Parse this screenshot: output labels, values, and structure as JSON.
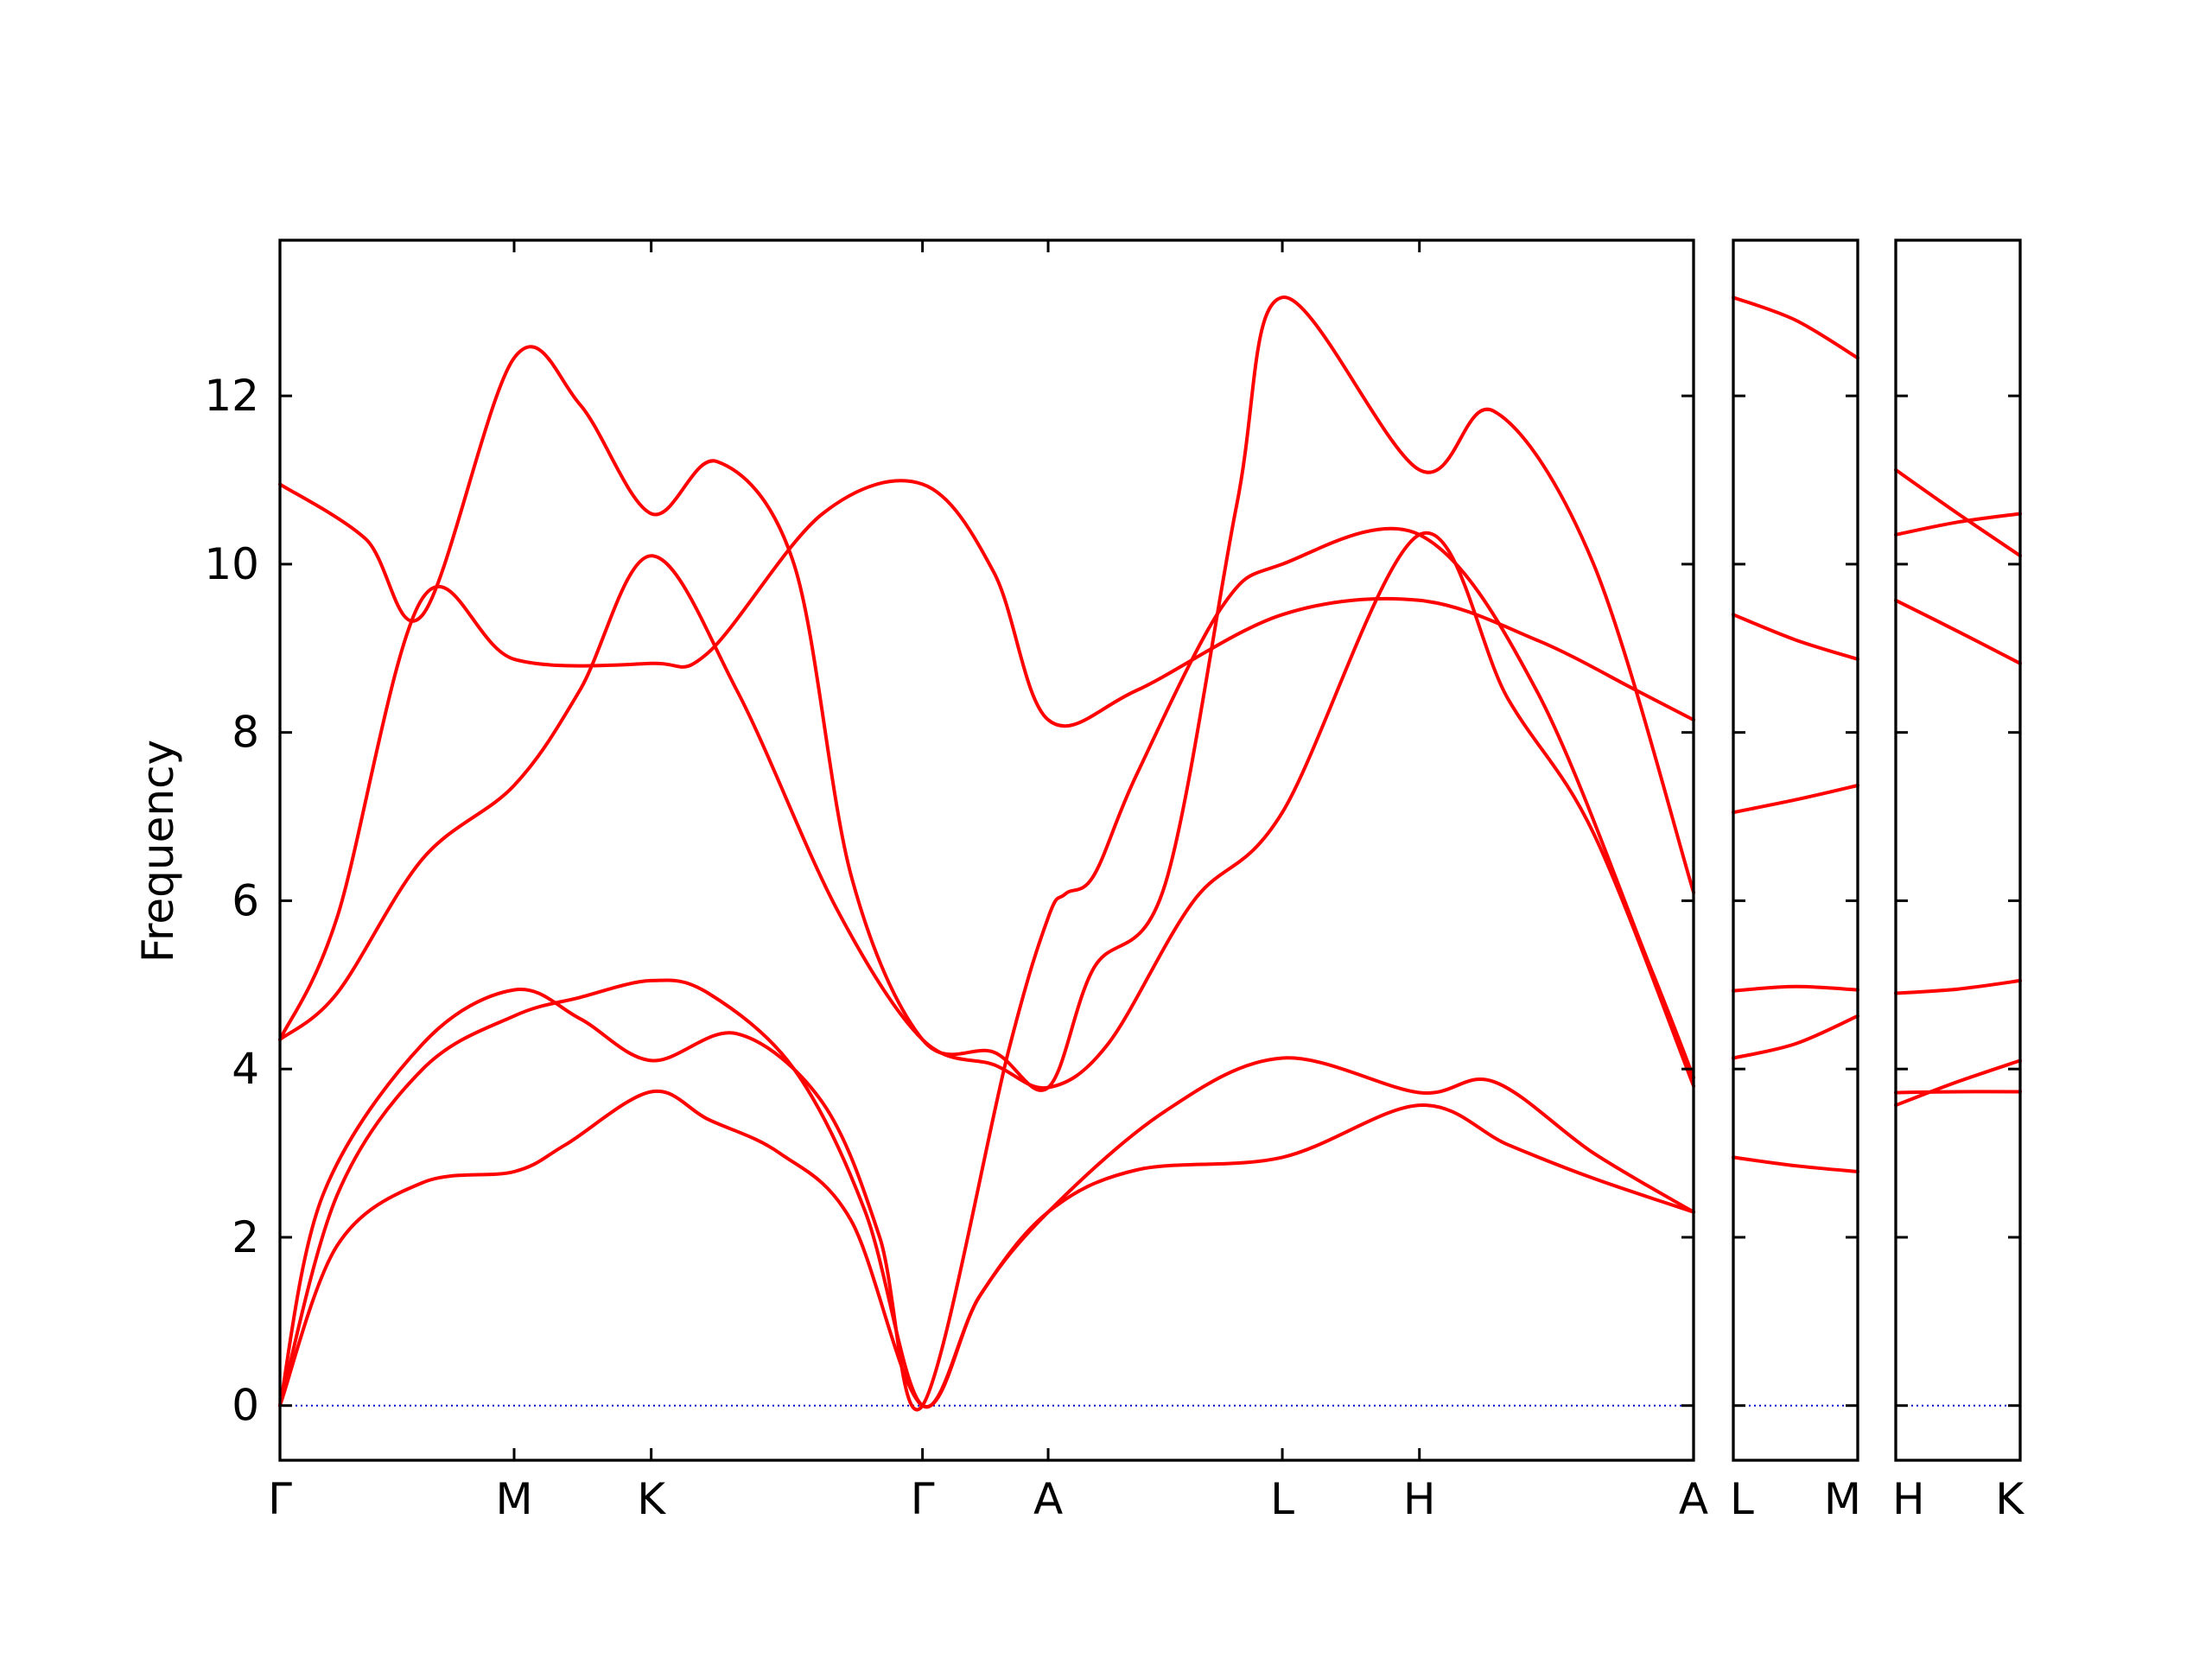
{
  "chart_data": {
    "type": "line",
    "ylabel": "Frequency",
    "ylim": [
      -0.65,
      13.85
    ],
    "yticks": [
      0,
      2,
      4,
      6,
      8,
      10,
      12
    ],
    "colors": {
      "bands": "#ff0000",
      "zero_line": "#0000cc",
      "axes": "#000000"
    },
    "grid": false,
    "panels": [
      {
        "labels": [
          "Γ",
          "M",
          "K",
          "Γ",
          "A",
          "L",
          "H",
          "A"
        ],
        "path": [
          [
            0,
            0.82,
            1.3,
            2.25,
            2.69,
            3.51,
            3.99,
            4.95
          ],
          [
            0,
            0.82,
            1.3,
            2.25,
            2.69,
            3.51,
            3.99,
            4.95
          ],
          [
            0,
            0.82,
            1.3,
            2.25,
            2.69,
            3.51,
            3.99,
            4.95
          ],
          [
            0,
            0.82,
            1.3,
            2.25,
            2.69,
            3.51,
            3.99,
            4.95
          ],
          [
            0,
            0.82,
            1.3,
            2.25,
            2.69,
            3.51,
            3.99,
            4.95
          ],
          [
            0,
            0.82,
            1.3,
            2.25,
            2.69,
            3.51,
            3.99,
            4.95
          ]
        ],
        "series": [
          {
            "values": [
              [
                0,
                0
              ],
              [
                0.2,
                1.9
              ],
              [
                0.5,
                2.65
              ],
              [
                0.82,
                2.78
              ],
              [
                1.0,
                3.1
              ],
              [
                1.3,
                3.73
              ],
              [
                1.5,
                3.4
              ],
              [
                1.75,
                3.0
              ],
              [
                2.0,
                2.2
              ],
              [
                2.25,
                0
              ],
              [
                2.45,
                1.3
              ],
              [
                2.69,
                2.3
              ],
              [
                3.0,
                2.8
              ],
              [
                3.51,
                2.95
              ],
              [
                3.99,
                3.57
              ],
              [
                4.3,
                3.1
              ],
              [
                4.6,
                2.7
              ],
              [
                4.95,
                2.3
              ]
            ]
          },
          {
            "values": [
              [
                0,
                0
              ],
              [
                0.2,
                2.5
              ],
              [
                0.5,
                4.0
              ],
              [
                0.82,
                4.63
              ],
              [
                1.05,
                4.85
              ],
              [
                1.3,
                5.05
              ],
              [
                1.5,
                4.9
              ],
              [
                1.8,
                4.0
              ],
              [
                2.05,
                2.3
              ],
              [
                2.25,
                0
              ],
              [
                2.45,
                1.3
              ],
              [
                2.69,
                2.3
              ],
              [
                3.1,
                3.5
              ],
              [
                3.51,
                4.13
              ],
              [
                3.99,
                3.72
              ],
              [
                4.25,
                3.85
              ],
              [
                4.6,
                3.0
              ],
              [
                4.95,
                2.3
              ]
            ]
          },
          {
            "values": [
              [
                0,
                0
              ],
              [
                0.15,
                2.5
              ],
              [
                0.5,
                4.3
              ],
              [
                0.82,
                4.94
              ],
              [
                1.05,
                4.6
              ],
              [
                1.3,
                4.1
              ],
              [
                1.6,
                4.42
              ],
              [
                1.9,
                3.6
              ],
              [
                2.1,
                2.0
              ],
              [
                2.25,
                0
              ],
              [
                2.55,
                4.2
              ],
              [
                2.69,
                5.8
              ],
              [
                2.75,
                6.08
              ],
              [
                2.85,
                6.3
              ],
              [
                3.0,
                7.5
              ],
              [
                3.3,
                9.5
              ],
              [
                3.51,
                10.0
              ],
              [
                3.99,
                10.35
              ],
              [
                4.4,
                8.5
              ],
              [
                4.8,
                5.2
              ],
              [
                4.95,
                3.9
              ]
            ]
          },
          {
            "values": [
              [
                0,
                4.35
              ],
              [
                0.2,
                4.9
              ],
              [
                0.5,
                6.5
              ],
              [
                0.82,
                7.37
              ],
              [
                1.05,
                8.5
              ],
              [
                1.3,
                10.1
              ],
              [
                1.6,
                8.5
              ],
              [
                1.95,
                5.9
              ],
              [
                2.25,
                4.35
              ],
              [
                2.5,
                4.05
              ],
              [
                2.69,
                3.78
              ],
              [
                2.9,
                4.3
              ],
              [
                3.2,
                6.0
              ],
              [
                3.51,
                7.05
              ],
              [
                3.99,
                10.35
              ],
              [
                4.3,
                8.4
              ],
              [
                4.6,
                6.8
              ],
              [
                4.95,
                3.8
              ]
            ]
          },
          {
            "values": [
              [
                0,
                4.35
              ],
              [
                0.2,
                5.8
              ],
              [
                0.5,
                9.6
              ],
              [
                0.82,
                8.87
              ],
              [
                1.3,
                8.82
              ],
              [
                1.5,
                8.95
              ],
              [
                1.9,
                10.6
              ],
              [
                2.25,
                10.95
              ],
              [
                2.5,
                9.9
              ],
              [
                2.69,
                8.15
              ],
              [
                3.0,
                8.5
              ],
              [
                3.51,
                9.4
              ],
              [
                3.99,
                9.57
              ],
              [
                4.4,
                9.1
              ],
              [
                4.75,
                8.5
              ],
              [
                4.95,
                8.15
              ]
            ]
          },
          {
            "values": [
              [
                0,
                10.95
              ],
              [
                0.3,
                10.3
              ],
              [
                0.5,
                9.4
              ],
              [
                0.82,
                12.45
              ],
              [
                1.05,
                11.9
              ],
              [
                1.3,
                10.6
              ],
              [
                1.53,
                11.22
              ],
              [
                1.8,
                10.0
              ],
              [
                2.0,
                6.3
              ],
              [
                2.25,
                4.35
              ],
              [
                2.5,
                4.2
              ],
              [
                2.69,
                3.78
              ],
              [
                2.85,
                5.2
              ],
              [
                3.1,
                6.2
              ],
              [
                3.35,
                10.7
              ],
              [
                3.51,
                13.17
              ],
              [
                3.99,
                11.12
              ],
              [
                4.25,
                11.82
              ],
              [
                4.6,
                10.0
              ],
              [
                4.95,
                6.1
              ]
            ]
          }
        ]
      },
      {
        "labels": [
          "L",
          "M"
        ],
        "series": [
          {
            "values": [
              [
                0,
                2.95
              ],
              [
                0.5,
                2.85
              ],
              [
                1,
                2.78
              ]
            ]
          },
          {
            "values": [
              [
                0,
                4.13
              ],
              [
                0.5,
                4.3
              ],
              [
                1,
                4.63
              ]
            ]
          },
          {
            "values": [
              [
                0,
                4.93
              ],
              [
                0.5,
                4.98
              ],
              [
                1,
                4.94
              ]
            ]
          },
          {
            "values": [
              [
                0,
                7.05
              ],
              [
                0.5,
                7.2
              ],
              [
                1,
                7.37
              ]
            ]
          },
          {
            "values": [
              [
                0,
                9.4
              ],
              [
                0.5,
                9.1
              ],
              [
                1,
                8.87
              ]
            ]
          },
          {
            "values": [
              [
                0,
                13.17
              ],
              [
                0.5,
                12.9
              ],
              [
                1,
                12.45
              ]
            ]
          }
        ]
      },
      {
        "labels": [
          "H",
          "K"
        ],
        "series": [
          {
            "values": [
              [
                0,
                3.57
              ],
              [
                0.5,
                3.85
              ],
              [
                1,
                4.1
              ]
            ]
          },
          {
            "values": [
              [
                0,
                3.72
              ],
              [
                0.5,
                3.73
              ],
              [
                1,
                3.73
              ]
            ]
          },
          {
            "values": [
              [
                0,
                4.9
              ],
              [
                0.5,
                4.95
              ],
              [
                1,
                5.05
              ]
            ]
          },
          {
            "values": [
              [
                0,
                9.57
              ],
              [
                0.5,
                9.2
              ],
              [
                1,
                8.82
              ]
            ]
          },
          {
            "values": [
              [
                0,
                10.35
              ],
              [
                0.5,
                10.5
              ],
              [
                1,
                10.6
              ]
            ]
          },
          {
            "values": [
              [
                0,
                11.12
              ],
              [
                0.5,
                10.6
              ],
              [
                1,
                10.1
              ]
            ]
          }
        ]
      }
    ]
  }
}
